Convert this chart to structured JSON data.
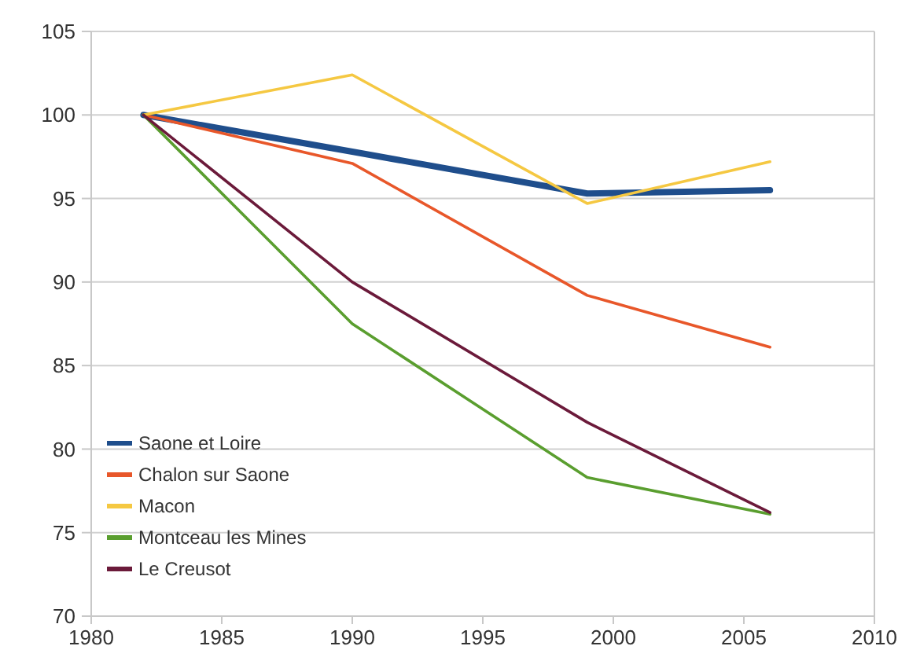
{
  "chart_data": {
    "type": "line",
    "x": [
      1982,
      1990,
      1999,
      2006
    ],
    "series": [
      {
        "name": "Saone et Loire",
        "color": "#1f4e8c",
        "values": [
          100,
          97.8,
          95.3,
          95.5
        ]
      },
      {
        "name": "Chalon sur Saone",
        "color": "#e8572a",
        "values": [
          100,
          97.1,
          89.2,
          86.1
        ]
      },
      {
        "name": "Macon",
        "color": "#f5c842",
        "values": [
          100,
          102.4,
          94.7,
          97.2
        ]
      },
      {
        "name": "Montceau les Mines",
        "color": "#5a9e2f",
        "values": [
          100,
          87.5,
          78.3,
          76.1
        ]
      },
      {
        "name": "Le Creusot",
        "color": "#6b1a3a",
        "values": [
          100,
          90,
          81.6,
          76.2
        ]
      }
    ],
    "xlim": [
      1980,
      2010
    ],
    "xticks": [
      1980,
      1985,
      1990,
      1995,
      2000,
      2005,
      2010
    ],
    "ylim": [
      70,
      105
    ],
    "yticks": [
      70,
      75,
      80,
      85,
      90,
      95,
      100,
      105
    ],
    "grid": "y",
    "legend": "bottom left",
    "marker": "none",
    "line_style": "solid"
  }
}
